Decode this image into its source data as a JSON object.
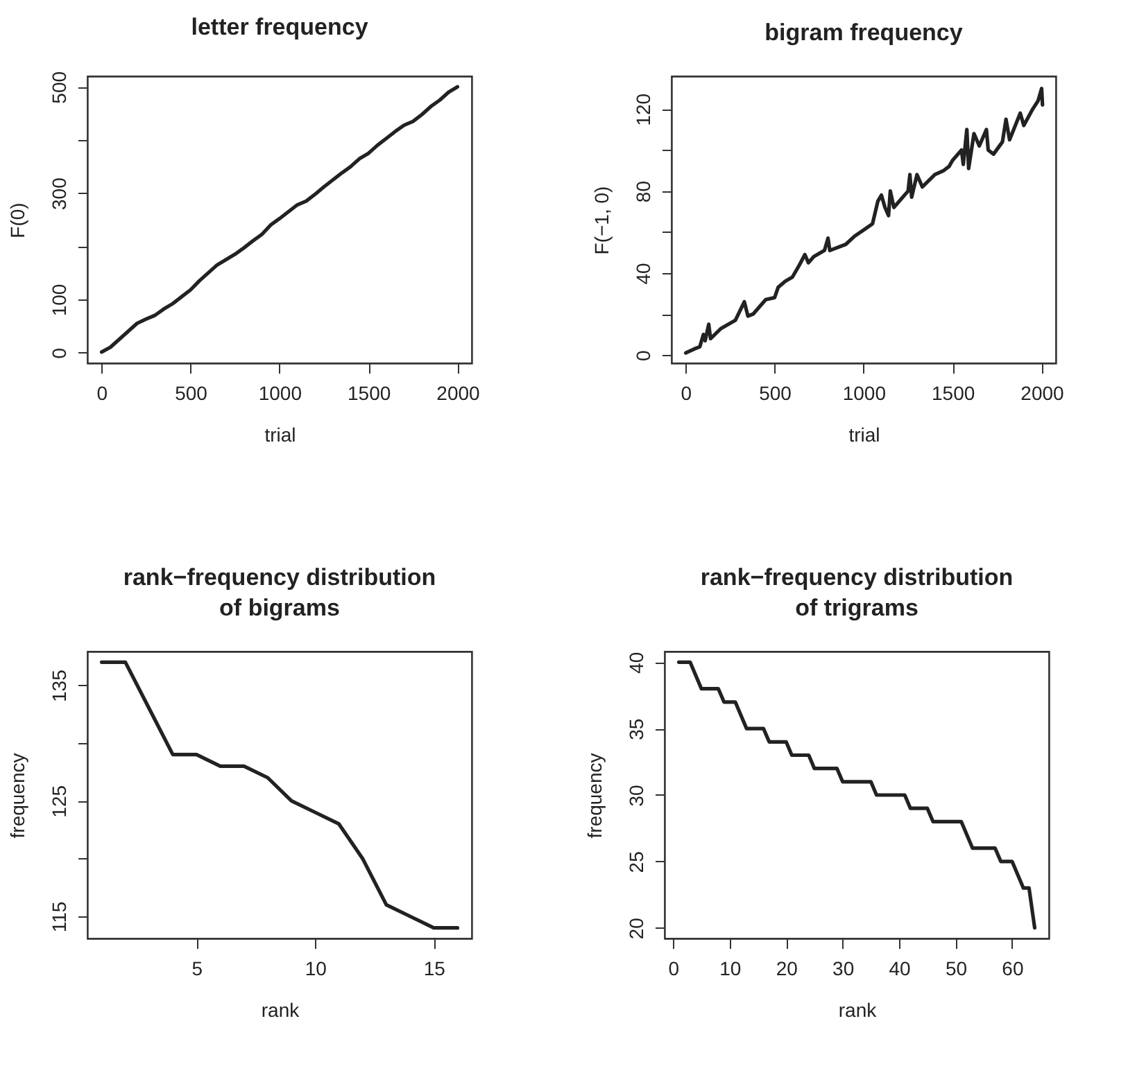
{
  "chart_data": [
    {
      "type": "line",
      "title": "letter frequency",
      "xlabel": "trial",
      "ylabel": "F(0)",
      "grid": false,
      "line_style": "solid",
      "xlim": [
        -79,
        2080
      ],
      "xticks": [
        0,
        500,
        1000,
        1500,
        2000
      ],
      "ylim": [
        -20,
        520
      ],
      "yticks": [
        0,
        100,
        {
          "value": 200,
          "label": null
        },
        300,
        {
          "value": 400,
          "label": null
        },
        500
      ],
      "series": [
        {
          "color": "#222222",
          "x": [
            1,
            50,
            100,
            150,
            200,
            250,
            300,
            350,
            400,
            450,
            500,
            550,
            600,
            650,
            700,
            750,
            800,
            850,
            900,
            950,
            1000,
            1050,
            1100,
            1150,
            1200,
            1250,
            1300,
            1350,
            1400,
            1450,
            1500,
            1550,
            1600,
            1650,
            1700,
            1750,
            1800,
            1850,
            1900,
            1950,
            2000
          ],
          "values": [
            1,
            10,
            25,
            40,
            55,
            63,
            70,
            82,
            92,
            105,
            118,
            135,
            150,
            165,
            175,
            185,
            197,
            210,
            222,
            240,
            252,
            265,
            278,
            285,
            298,
            312,
            325,
            338,
            350,
            365,
            375,
            390,
            403,
            416,
            428,
            435,
            448,
            463,
            475,
            490,
            500
          ]
        }
      ]
    },
    {
      "type": "line",
      "title": "bigram frequency",
      "xlabel": "trial",
      "ylabel": "F(−1, 0)",
      "grid": false,
      "line_style": "solid",
      "xlim": [
        -79,
        2080
      ],
      "xticks": [
        0,
        500,
        1000,
        1500,
        2000
      ],
      "ylim": [
        -4,
        136
      ],
      "yticks": [
        0,
        {
          "value": 20,
          "label": null
        },
        40,
        {
          "value": 60,
          "label": null
        },
        80,
        {
          "value": 100,
          "label": null
        },
        120
      ],
      "series": [
        {
          "color": "#222222",
          "x": [
            1,
            50,
            80,
            100,
            110,
            130,
            140,
            200,
            280,
            330,
            350,
            380,
            450,
            500,
            520,
            560,
            600,
            640,
            670,
            690,
            720,
            780,
            800,
            810,
            900,
            950,
            1000,
            1050,
            1080,
            1100,
            1120,
            1140,
            1150,
            1170,
            1250,
            1260,
            1270,
            1300,
            1330,
            1400,
            1450,
            1480,
            1500,
            1550,
            1560,
            1580,
            1590,
            1620,
            1650,
            1690,
            1700,
            1730,
            1780,
            1800,
            1820,
            1880,
            1900,
            1950,
            1980,
            2000,
            2005
          ],
          "values": [
            1,
            3,
            4,
            10,
            7,
            15,
            8,
            13,
            17,
            26,
            19,
            20,
            27,
            28,
            33,
            36,
            38,
            44,
            49,
            45,
            48,
            51,
            57,
            51,
            54,
            58,
            61,
            64,
            75,
            78,
            72,
            68,
            80,
            72,
            80,
            88,
            77,
            88,
            82,
            88,
            90,
            92,
            95,
            100,
            93,
            110,
            91,
            108,
            102,
            110,
            100,
            98,
            104,
            115,
            105,
            118,
            112,
            120,
            124,
            130,
            122
          ]
        }
      ]
    },
    {
      "type": "line",
      "title": "rank−frequency distribution\nof bigrams",
      "xlabel": "rank",
      "ylabel": "frequency",
      "grid": false,
      "line_style": "solid",
      "xlim": [
        0.4,
        16.6
      ],
      "xticks": [
        5,
        10,
        15
      ],
      "ylim": [
        113.08,
        137.92
      ],
      "yticks": [
        115,
        {
          "value": 120,
          "label": null
        },
        125,
        {
          "value": 130,
          "label": null
        },
        135
      ],
      "series": [
        {
          "color": "#222222",
          "x": [
            1,
            2,
            3,
            4,
            5,
            6,
            7,
            8,
            9,
            10,
            11,
            12,
            13,
            14,
            15,
            16
          ],
          "values": [
            137,
            137,
            133,
            129,
            129,
            128,
            128,
            127,
            125,
            124,
            123,
            120,
            116,
            115,
            114,
            114
          ]
        }
      ]
    },
    {
      "type": "line",
      "title": "rank−frequency distribution\nof trigrams",
      "xlabel": "rank",
      "ylabel": "frequency",
      "grid": false,
      "line_style": "solid",
      "xlim": [
        -1.52,
        66.52
      ],
      "xticks": [
        0,
        10,
        20,
        30,
        40,
        50,
        60
      ],
      "ylim": [
        19.2,
        40.8
      ],
      "yticks": [
        20,
        25,
        30,
        35,
        40
      ],
      "series": [
        {
          "color": "#222222",
          "x": [
            1,
            2,
            3,
            4,
            5,
            6,
            7,
            8,
            9,
            10,
            11,
            12,
            13,
            14,
            15,
            16,
            17,
            18,
            19,
            20,
            21,
            22,
            23,
            24,
            25,
            26,
            27,
            28,
            29,
            30,
            31,
            32,
            33,
            34,
            35,
            36,
            37,
            38,
            39,
            40,
            41,
            42,
            43,
            44,
            45,
            46,
            47,
            48,
            49,
            50,
            51,
            52,
            53,
            54,
            55,
            56,
            57,
            58,
            59,
            60,
            61,
            62,
            63,
            64
          ],
          "values": [
            40,
            40,
            40,
            39,
            38,
            38,
            38,
            38,
            37,
            37,
            37,
            36,
            35,
            35,
            35,
            35,
            34,
            34,
            34,
            34,
            33,
            33,
            33,
            33,
            32,
            32,
            32,
            32,
            32,
            31,
            31,
            31,
            31,
            31,
            31,
            30,
            30,
            30,
            30,
            30,
            30,
            29,
            29,
            29,
            29,
            28,
            28,
            28,
            28,
            28,
            28,
            27,
            26,
            26,
            26,
            26,
            26,
            25,
            25,
            25,
            24,
            23,
            23,
            20
          ]
        }
      ]
    }
  ]
}
